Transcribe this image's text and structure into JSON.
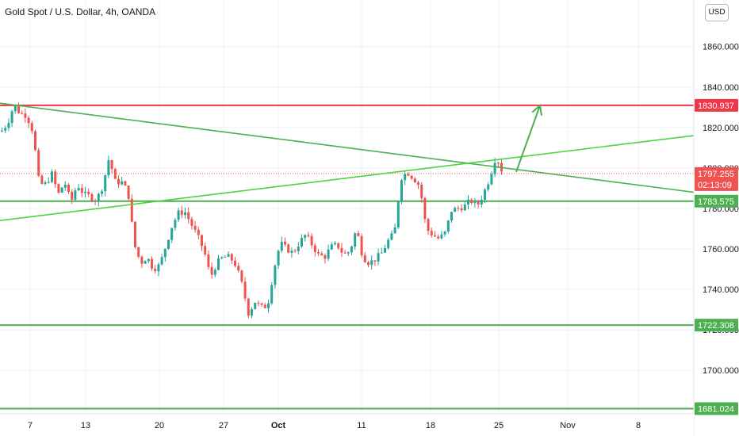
{
  "header": {
    "title": "Gold Spot / U.S. Dollar, 4h, OANDA",
    "unit_button": "USD"
  },
  "colors": {
    "up": "#26a69a",
    "down": "#ef5350",
    "hline_red": "#f23645",
    "trend_green": "#4caf50",
    "bright_green": "#4cd440",
    "grid": "#eef0f3"
  },
  "chart_data": {
    "type": "candlestick",
    "symbol": "XAUUSD",
    "timeframe": "4h",
    "y_ticks": [
      1860,
      1840,
      1820,
      1800,
      1780,
      1760,
      1740,
      1720,
      1700
    ],
    "y_tick_labels": [
      "1860.000",
      "1840.000",
      "1820.000",
      "1800.000",
      "1780.000",
      "1760.000",
      "1740.000",
      "1720.000",
      "1700.000"
    ],
    "ylim": [
      1678.5,
      1883
    ],
    "x_ticks": [
      "7",
      "13",
      "20",
      "27",
      "Oct",
      "11",
      "18",
      "25",
      "Nov",
      "8"
    ],
    "price_labels": [
      {
        "value": 1830.937,
        "text": "1830.937",
        "color": "#f23645"
      },
      {
        "value": 1797.255,
        "text": "1797.255",
        "color": "#ef5350",
        "countdown": "02:13:09"
      },
      {
        "value": 1783.575,
        "text": "1783.575",
        "color": "#4caf50"
      },
      {
        "value": 1722.308,
        "text": "1722.308",
        "color": "#4caf50"
      },
      {
        "value": 1681.024,
        "text": "1681.024",
        "color": "#4caf50"
      }
    ],
    "horizontal_lines": [
      1830.937,
      1783.575,
      1722.308,
      1681.024
    ],
    "trend_lines": [
      {
        "name": "descending",
        "from": [
          0,
          1832
        ],
        "to": [
          875,
          1788
        ],
        "color": "#4caf50"
      },
      {
        "name": "ascending",
        "from": [
          0,
          1774
        ],
        "to": [
          875,
          1816
        ],
        "color": "#4cd440"
      }
    ],
    "projection_arrow": {
      "from": [
        651,
        1798
      ],
      "to": [
        681,
        1830.9
      ]
    },
    "current_price": 1797.255,
    "candle_path": [
      [
        0,
        1818
      ],
      [
        8,
        1822
      ],
      [
        16,
        1831
      ],
      [
        24,
        1827
      ],
      [
        32,
        1826
      ],
      [
        40,
        1818
      ],
      [
        48,
        1792
      ],
      [
        56,
        1792
      ],
      [
        64,
        1797
      ],
      [
        72,
        1787
      ],
      [
        80,
        1793
      ],
      [
        88,
        1783
      ],
      [
        96,
        1792
      ],
      [
        104,
        1787
      ],
      [
        112,
        1786
      ],
      [
        120,
        1784
      ],
      [
        128,
        1791
      ],
      [
        136,
        1805
      ],
      [
        144,
        1793
      ],
      [
        152,
        1793
      ],
      [
        160,
        1788
      ],
      [
        168,
        1762
      ],
      [
        176,
        1753
      ],
      [
        184,
        1756
      ],
      [
        192,
        1750
      ],
      [
        200,
        1752
      ],
      [
        208,
        1762
      ],
      [
        216,
        1772
      ],
      [
        224,
        1778
      ],
      [
        232,
        1778
      ],
      [
        240,
        1772
      ],
      [
        248,
        1766
      ],
      [
        256,
        1759
      ],
      [
        264,
        1746
      ],
      [
        272,
        1753
      ],
      [
        280,
        1756
      ],
      [
        288,
        1756
      ],
      [
        296,
        1752
      ],
      [
        304,
        1742
      ],
      [
        312,
        1728
      ],
      [
        320,
        1734
      ],
      [
        328,
        1731
      ],
      [
        336,
        1732
      ],
      [
        344,
        1750
      ],
      [
        352,
        1763
      ],
      [
        360,
        1760
      ],
      [
        368,
        1758
      ],
      [
        376,
        1763
      ],
      [
        384,
        1767
      ],
      [
        392,
        1762
      ],
      [
        400,
        1757
      ],
      [
        408,
        1756
      ],
      [
        416,
        1761
      ],
      [
        424,
        1762
      ],
      [
        432,
        1757
      ],
      [
        440,
        1759
      ],
      [
        448,
        1770
      ],
      [
        456,
        1756
      ],
      [
        464,
        1753
      ],
      [
        472,
        1755
      ],
      [
        480,
        1758
      ],
      [
        488,
        1764
      ],
      [
        496,
        1768
      ],
      [
        504,
        1795
      ],
      [
        512,
        1798
      ],
      [
        520,
        1795
      ],
      [
        528,
        1791
      ],
      [
        536,
        1770
      ],
      [
        544,
        1767
      ],
      [
        552,
        1765
      ],
      [
        560,
        1768
      ],
      [
        568,
        1779
      ],
      [
        576,
        1780
      ],
      [
        584,
        1781
      ],
      [
        592,
        1784
      ],
      [
        600,
        1781
      ],
      [
        608,
        1787
      ],
      [
        616,
        1795
      ],
      [
        624,
        1806
      ],
      [
        632,
        1798
      ]
    ]
  }
}
